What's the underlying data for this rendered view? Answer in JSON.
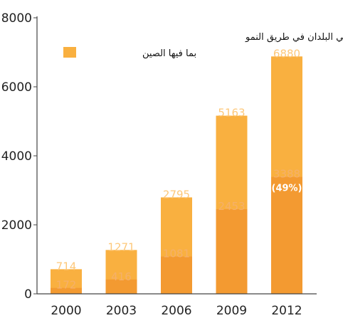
{
  "chart_data": {
    "type": "bar",
    "categories": [
      "2000",
      "2003",
      "2006",
      "2009",
      "2012"
    ],
    "series": [
      {
        "name": "احتياطيات الصرف في البلدان في طريق النمو",
        "values": [
          714,
          1271,
          2795,
          5163,
          6880
        ]
      },
      {
        "name": "بما فيها الصين",
        "values": [
          172,
          416,
          1081,
          2453,
          3388
        ]
      }
    ],
    "share_label": "(49%)",
    "yticks": [
      0,
      2000,
      4000,
      6000,
      8000
    ],
    "ylim": [
      0,
      8000
    ],
    "legend": {
      "text_line1": "احتياطيات الصرف في البلدان في طريق النمو",
      "text_line2": "بما فيها الصين",
      "placement": "top-left"
    },
    "colors": {
      "total": "#F9B040",
      "china": "#F39A31",
      "total_label": "#FDC87A",
      "china_label": "#F5B06A",
      "axis": "#444444"
    }
  }
}
